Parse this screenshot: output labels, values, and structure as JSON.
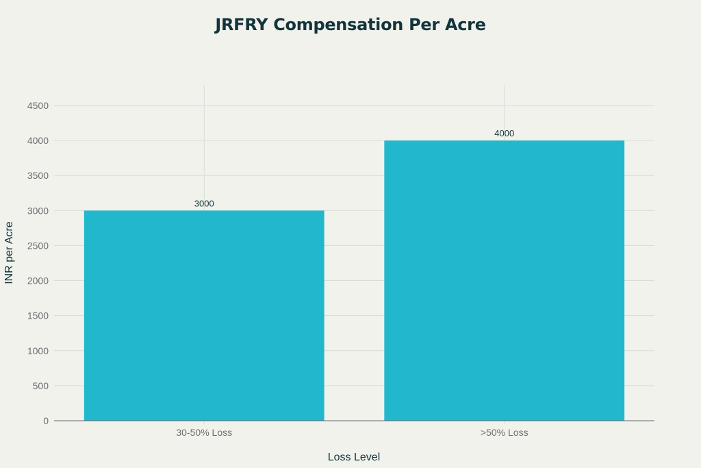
{
  "title": "JRFRY Compensation Per Acre",
  "colors": {
    "bar": "#21b8cd",
    "background": "#f1f2ec",
    "grid": "#d9dbd6",
    "title": "#13343b"
  },
  "chart_data": {
    "type": "bar",
    "title": "JRFRY Compensation Per Acre",
    "xlabel": "Loss Level",
    "ylabel": "INR per Acre",
    "categories": [
      "30-50% Loss",
      ">50% Loss"
    ],
    "values": [
      3000,
      4000
    ],
    "data_labels": [
      "3000",
      "4000"
    ],
    "ylim": [
      0,
      4800
    ],
    "yticks": [
      0,
      500,
      1000,
      1500,
      2000,
      2500,
      3000,
      3500,
      4000,
      4500
    ],
    "grid": true,
    "legend": null
  }
}
